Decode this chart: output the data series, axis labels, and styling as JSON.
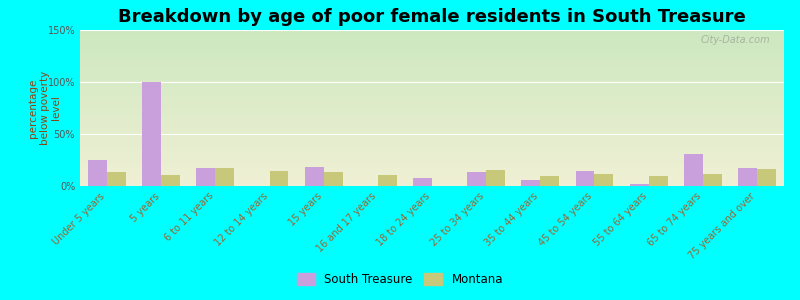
{
  "title": "Breakdown by age of poor female residents in South Treasure",
  "categories": [
    "Under 5 years",
    "5 years",
    "6 to 11 years",
    "12 to 14 years",
    "15 years",
    "16 and 17 years",
    "18 to 24 years",
    "25 to 34 years",
    "35 to 44 years",
    "45 to 54 years",
    "55 to 64 years",
    "65 to 74 years",
    "75 years and over"
  ],
  "south_treasure": [
    25,
    100,
    17,
    0,
    18,
    0,
    8,
    13,
    6,
    14,
    2,
    31,
    17
  ],
  "montana": [
    13,
    11,
    17,
    14,
    13,
    11,
    0,
    15,
    10,
    12,
    10,
    12,
    16
  ],
  "south_treasure_color": "#c9a0dc",
  "montana_color": "#c8c87a",
  "grad_top": "#cde8c0",
  "grad_bot": "#f0f0d4",
  "outer_bg": "#00ffff",
  "ylabel": "percentage\nbelow poverty\nlevel",
  "ylim": [
    0,
    150
  ],
  "yticks": [
    0,
    50,
    100,
    150
  ],
  "ytick_labels": [
    "0%",
    "50%",
    "100%",
    "150%"
  ],
  "legend_south_treasure": "South Treasure",
  "legend_montana": "Montana",
  "bar_width": 0.35,
  "title_fontsize": 13,
  "axis_label_fontsize": 7.5,
  "tick_fontsize": 7,
  "watermark": "City-Data.com"
}
